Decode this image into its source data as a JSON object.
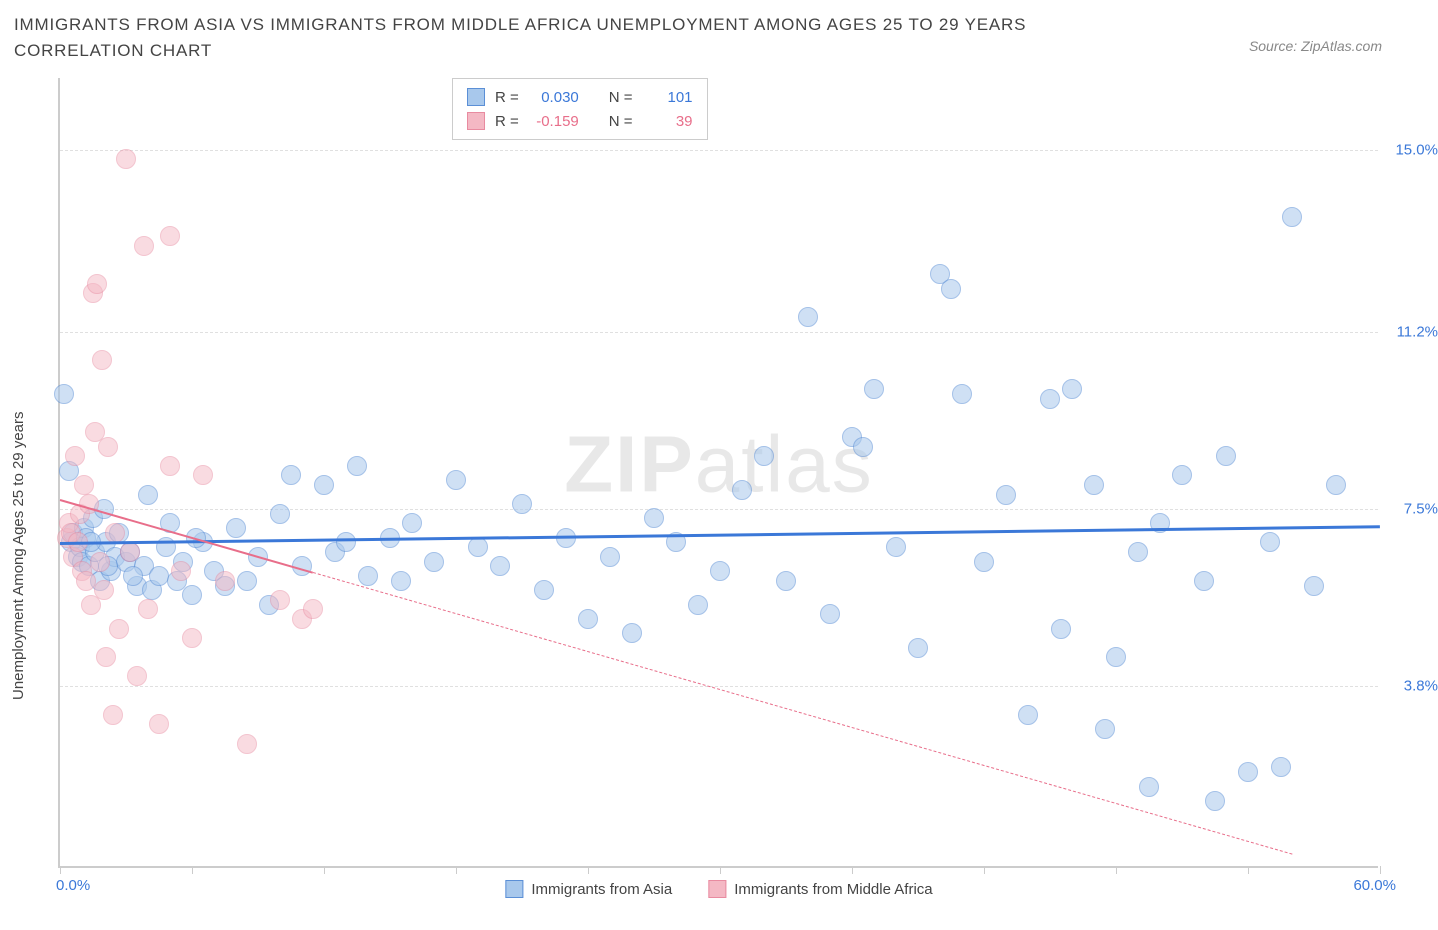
{
  "title": "IMMIGRANTS FROM ASIA VS IMMIGRANTS FROM MIDDLE AFRICA UNEMPLOYMENT AMONG AGES 25 TO 29 YEARS CORRELATION CHART",
  "source": "Source: ZipAtlas.com",
  "ylabel": "Unemployment Among Ages 25 to 29 years",
  "watermark_bold": "ZIP",
  "watermark_light": "atlas",
  "chart": {
    "type": "scatter",
    "xlim": [
      0,
      60
    ],
    "ylim": [
      0,
      16.5
    ],
    "xticks": [
      0,
      6,
      12,
      18,
      24,
      30,
      36,
      42,
      48,
      54,
      60
    ],
    "yticks": [
      3.8,
      7.5,
      11.2,
      15.0
    ],
    "ytick_labels": [
      "3.8%",
      "7.5%",
      "11.2%",
      "15.0%"
    ],
    "x_min_label": "0.0%",
    "x_max_label": "60.0%",
    "grid_color": "#e0e0e0",
    "axis_color": "#cccccc",
    "background_color": "#ffffff"
  },
  "series": [
    {
      "name": "Immigrants from Asia",
      "fill": "#a8c8ec",
      "stroke": "#5b8fd6",
      "value_color": "#3b78d8",
      "R": "0.030",
      "N": "101",
      "trend": {
        "x1": 0,
        "y1": 6.8,
        "x2": 60,
        "y2": 7.15,
        "solid_until_x": 60,
        "color": "#3b78d8",
        "width": 2.5
      },
      "marker_r": 10,
      "marker_opacity": 0.55,
      "points": [
        [
          0.2,
          9.9
        ],
        [
          0.4,
          8.3
        ],
        [
          0.5,
          6.8
        ],
        [
          0.6,
          7.0
        ],
        [
          0.8,
          6.5
        ],
        [
          0.9,
          6.7
        ],
        [
          1.0,
          6.4
        ],
        [
          1.1,
          7.1
        ],
        [
          1.2,
          6.9
        ],
        [
          1.3,
          6.3
        ],
        [
          1.5,
          7.3
        ],
        [
          1.6,
          6.6
        ],
        [
          1.8,
          6.0
        ],
        [
          2.0,
          7.5
        ],
        [
          2.1,
          6.8
        ],
        [
          2.3,
          6.2
        ],
        [
          2.5,
          6.5
        ],
        [
          2.7,
          7.0
        ],
        [
          3.0,
          6.4
        ],
        [
          3.2,
          6.6
        ],
        [
          3.5,
          5.9
        ],
        [
          3.8,
          6.3
        ],
        [
          4.0,
          7.8
        ],
        [
          4.2,
          5.8
        ],
        [
          4.5,
          6.1
        ],
        [
          5.0,
          7.2
        ],
        [
          5.3,
          6.0
        ],
        [
          5.6,
          6.4
        ],
        [
          6.0,
          5.7
        ],
        [
          6.5,
          6.8
        ],
        [
          7.0,
          6.2
        ],
        [
          7.5,
          5.9
        ],
        [
          8.0,
          7.1
        ],
        [
          8.5,
          6.0
        ],
        [
          9.0,
          6.5
        ],
        [
          9.5,
          5.5
        ],
        [
          10.0,
          7.4
        ],
        [
          10.5,
          8.2
        ],
        [
          11.0,
          6.3
        ],
        [
          12.0,
          8.0
        ],
        [
          12.5,
          6.6
        ],
        [
          13.0,
          6.8
        ],
        [
          13.5,
          8.4
        ],
        [
          14.0,
          6.1
        ],
        [
          15.0,
          6.9
        ],
        [
          15.5,
          6.0
        ],
        [
          16.0,
          7.2
        ],
        [
          17.0,
          6.4
        ],
        [
          18.0,
          8.1
        ],
        [
          19.0,
          6.7
        ],
        [
          20.0,
          6.3
        ],
        [
          21.0,
          7.6
        ],
        [
          22.0,
          5.8
        ],
        [
          23.0,
          6.9
        ],
        [
          24.0,
          5.2
        ],
        [
          25.0,
          6.5
        ],
        [
          26.0,
          4.9
        ],
        [
          27.0,
          7.3
        ],
        [
          28.0,
          6.8
        ],
        [
          29.0,
          5.5
        ],
        [
          30.0,
          6.2
        ],
        [
          31.0,
          7.9
        ],
        [
          32.0,
          8.6
        ],
        [
          33.0,
          6.0
        ],
        [
          34.0,
          11.5
        ],
        [
          35.0,
          5.3
        ],
        [
          36.0,
          9.0
        ],
        [
          36.5,
          8.8
        ],
        [
          37.0,
          10.0
        ],
        [
          38.0,
          6.7
        ],
        [
          39.0,
          4.6
        ],
        [
          40.0,
          12.4
        ],
        [
          40.5,
          12.1
        ],
        [
          41.0,
          9.9
        ],
        [
          42.0,
          6.4
        ],
        [
          43.0,
          7.8
        ],
        [
          44.0,
          3.2
        ],
        [
          45.0,
          9.8
        ],
        [
          45.5,
          5.0
        ],
        [
          46.0,
          10.0
        ],
        [
          47.0,
          8.0
        ],
        [
          47.5,
          2.9
        ],
        [
          48.0,
          4.4
        ],
        [
          49.0,
          6.6
        ],
        [
          49.5,
          1.7
        ],
        [
          50.0,
          7.2
        ],
        [
          51.0,
          8.2
        ],
        [
          52.0,
          6.0
        ],
        [
          52.5,
          1.4
        ],
        [
          53.0,
          8.6
        ],
        [
          54.0,
          2.0
        ],
        [
          55.0,
          6.8
        ],
        [
          55.5,
          2.1
        ],
        [
          56.0,
          13.6
        ],
        [
          57.0,
          5.9
        ],
        [
          58.0,
          8.0
        ],
        [
          1.4,
          6.8
        ],
        [
          2.2,
          6.3
        ],
        [
          3.3,
          6.1
        ],
        [
          4.8,
          6.7
        ],
        [
          6.2,
          6.9
        ]
      ]
    },
    {
      "name": "Immigrants from Middle Africa",
      "fill": "#f4b8c4",
      "stroke": "#e88ba0",
      "value_color": "#e86e8a",
      "R": "-0.159",
      "N": "39",
      "trend": {
        "x1": 0,
        "y1": 7.7,
        "x2": 56,
        "y2": 0.3,
        "solid_until_x": 11.5,
        "color": "#e86e8a",
        "width": 2
      },
      "marker_r": 10,
      "marker_opacity": 0.5,
      "points": [
        [
          0.3,
          6.9
        ],
        [
          0.4,
          7.2
        ],
        [
          0.5,
          7.0
        ],
        [
          0.6,
          6.5
        ],
        [
          0.7,
          8.6
        ],
        [
          0.8,
          6.8
        ],
        [
          0.9,
          7.4
        ],
        [
          1.0,
          6.2
        ],
        [
          1.1,
          8.0
        ],
        [
          1.2,
          6.0
        ],
        [
          1.3,
          7.6
        ],
        [
          1.4,
          5.5
        ],
        [
          1.5,
          12.0
        ],
        [
          1.6,
          9.1
        ],
        [
          1.7,
          12.2
        ],
        [
          1.8,
          6.4
        ],
        [
          1.9,
          10.6
        ],
        [
          2.0,
          5.8
        ],
        [
          2.1,
          4.4
        ],
        [
          2.2,
          8.8
        ],
        [
          2.4,
          3.2
        ],
        [
          2.5,
          7.0
        ],
        [
          2.7,
          5.0
        ],
        [
          3.0,
          14.8
        ],
        [
          3.2,
          6.6
        ],
        [
          3.5,
          4.0
        ],
        [
          3.8,
          13.0
        ],
        [
          4.0,
          5.4
        ],
        [
          4.5,
          3.0
        ],
        [
          5.0,
          8.4
        ],
        [
          5.0,
          13.2
        ],
        [
          5.5,
          6.2
        ],
        [
          6.0,
          4.8
        ],
        [
          6.5,
          8.2
        ],
        [
          7.5,
          6.0
        ],
        [
          8.5,
          2.6
        ],
        [
          10.0,
          5.6
        ],
        [
          11.0,
          5.2
        ],
        [
          11.5,
          5.4
        ]
      ]
    }
  ],
  "legend": {
    "R_label": "R =",
    "N_label": "N =",
    "items": [
      "Immigrants from Asia",
      "Immigrants from Middle Africa"
    ]
  }
}
